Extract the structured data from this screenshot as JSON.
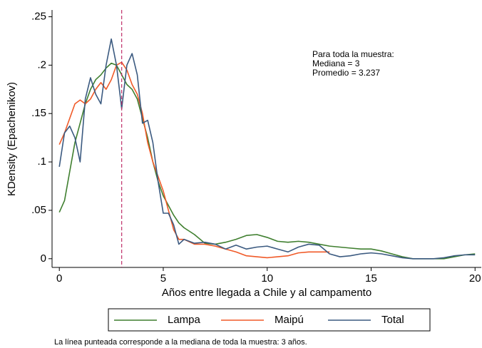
{
  "chart_data": {
    "type": "line",
    "x_label": "Años entre llegada a Chile y al campamento",
    "y_label": "KDensity (Epachenikov)",
    "annotation": [
      "Para toda la muestra:",
      "Mediana = 3",
      "Promedio = 3.237"
    ],
    "note": "La línea punteada corresponde a la mediana de toda la muestra: 3 años.",
    "median_line": 3,
    "median_color": "#c0306a",
    "x": [
      0,
      0.25,
      0.5,
      0.75,
      1,
      1.25,
      1.5,
      1.75,
      2,
      2.25,
      2.5,
      2.75,
      3,
      3.25,
      3.5,
      3.75,
      4,
      4.25,
      4.5,
      4.75,
      5,
      5.25,
      5.5,
      5.75,
      6,
      6.5,
      7,
      7.5,
      8,
      8.5,
      9,
      9.5,
      10,
      10.5,
      11,
      11.5,
      12,
      12.5,
      13,
      13.5,
      14,
      14.5,
      15,
      15.5,
      16,
      16.5,
      17,
      17.5,
      18,
      18.5,
      19,
      19.5,
      20
    ],
    "series": [
      {
        "name": "Lampa",
        "color": "#3f7f2f",
        "values": [
          0.048,
          0.06,
          0.09,
          0.12,
          0.14,
          0.16,
          0.175,
          0.185,
          0.19,
          0.197,
          0.202,
          0.2,
          0.19,
          0.18,
          0.175,
          0.165,
          0.145,
          0.125,
          0.1,
          0.08,
          0.065,
          0.055,
          0.045,
          0.037,
          0.032,
          0.025,
          0.016,
          0.015,
          0.017,
          0.02,
          0.024,
          0.025,
          0.022,
          0.018,
          0.017,
          0.018,
          0.017,
          0.015,
          0.013,
          0.012,
          0.011,
          0.01,
          0.01,
          0.008,
          0.005,
          0.002,
          0,
          0,
          0,
          0,
          0.002,
          0.004,
          0.005
        ]
      },
      {
        "name": "Maipú",
        "color": "#f05a28",
        "values": [
          0.118,
          0.13,
          0.145,
          0.16,
          0.164,
          0.16,
          0.165,
          0.175,
          0.182,
          0.175,
          0.185,
          0.2,
          0.203,
          0.195,
          0.18,
          0.17,
          0.15,
          0.12,
          0.1,
          0.085,
          0.07,
          0.05,
          0.03,
          0.02,
          0.02,
          0.015,
          0.015,
          0.013,
          0.01,
          0.007,
          0.003,
          0.002,
          0.001,
          0.002,
          0.003,
          0.006,
          0.007,
          0.007,
          0.007,
          null,
          null,
          null,
          null,
          null,
          null,
          null,
          null,
          null,
          null,
          null,
          null,
          null,
          null
        ]
      },
      {
        "name": "Total",
        "color": "#3b5a80",
        "values": [
          0.095,
          0.13,
          0.137,
          0.125,
          0.1,
          0.165,
          0.187,
          0.17,
          0.16,
          0.2,
          0.227,
          0.2,
          0.155,
          0.2,
          0.212,
          0.19,
          0.14,
          0.143,
          0.12,
          0.08,
          0.047,
          0.047,
          0.035,
          0.015,
          0.02,
          0.016,
          0.017,
          0.015,
          0.01,
          0.014,
          0.01,
          0.012,
          0.013,
          0.01,
          0.007,
          0.012,
          0.015,
          0.014,
          0.005,
          0.002,
          0.003,
          0.005,
          0.006,
          0.005,
          0.003,
          0.001,
          0,
          0,
          0,
          0.001,
          0.003,
          0.004,
          0.004
        ]
      }
    ],
    "xlim": [
      -0.35,
      20.3
    ],
    "ylim": [
      -0.009,
      0.257
    ],
    "xticks": [
      0,
      5,
      10,
      15,
      20
    ],
    "yticks": [
      0,
      {
        "value": 0.05,
        "label": ".05"
      },
      {
        "value": 0.1,
        "label": ".1"
      },
      {
        "value": 0.15,
        "label": ".15"
      },
      {
        "value": 0.2,
        "label": ".2"
      },
      {
        "value": 0.25,
        "label": ".25"
      }
    ]
  }
}
